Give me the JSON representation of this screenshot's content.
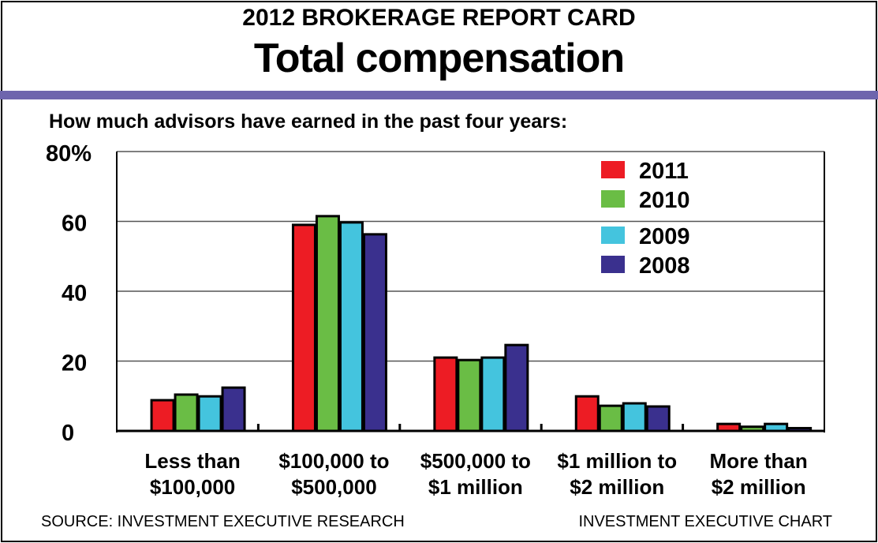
{
  "header": {
    "kicker": "2012 BROKERAGE REPORT CARD",
    "title": "Total compensation"
  },
  "subtitle": "How much advisors have earned in the past four years:",
  "footer": {
    "source": "SOURCE: INVESTMENT EXECUTIVE RESEARCH",
    "credit": "INVESTMENT EXECUTIVE CHART"
  },
  "chart_data": {
    "type": "bar",
    "categories": [
      [
        "Less than",
        "$100,000"
      ],
      [
        "$100,000 to",
        "$500,000"
      ],
      [
        "$500,000 to",
        "$1 million"
      ],
      [
        "$1 million to",
        "$2 million"
      ],
      [
        "More than",
        "$2 million"
      ]
    ],
    "series": [
      {
        "name": "2011",
        "color": "#ed1c24",
        "values": [
          8.8,
          59,
          21,
          9.9,
          2
        ]
      },
      {
        "name": "2010",
        "color": "#6abd45",
        "values": [
          10.4,
          61.5,
          20.3,
          7.2,
          1.2
        ]
      },
      {
        "name": "2009",
        "color": "#44c4de",
        "values": [
          9.9,
          59.7,
          21,
          7.9,
          2
        ]
      },
      {
        "name": "2008",
        "color": "#3a308e",
        "values": [
          12.4,
          56.3,
          24.6,
          7,
          0.8
        ]
      }
    ],
    "yticks": [
      "0",
      "20",
      "40",
      "60",
      "80%"
    ],
    "ylim": [
      0,
      80
    ],
    "grid": true,
    "legend": "top-right"
  }
}
